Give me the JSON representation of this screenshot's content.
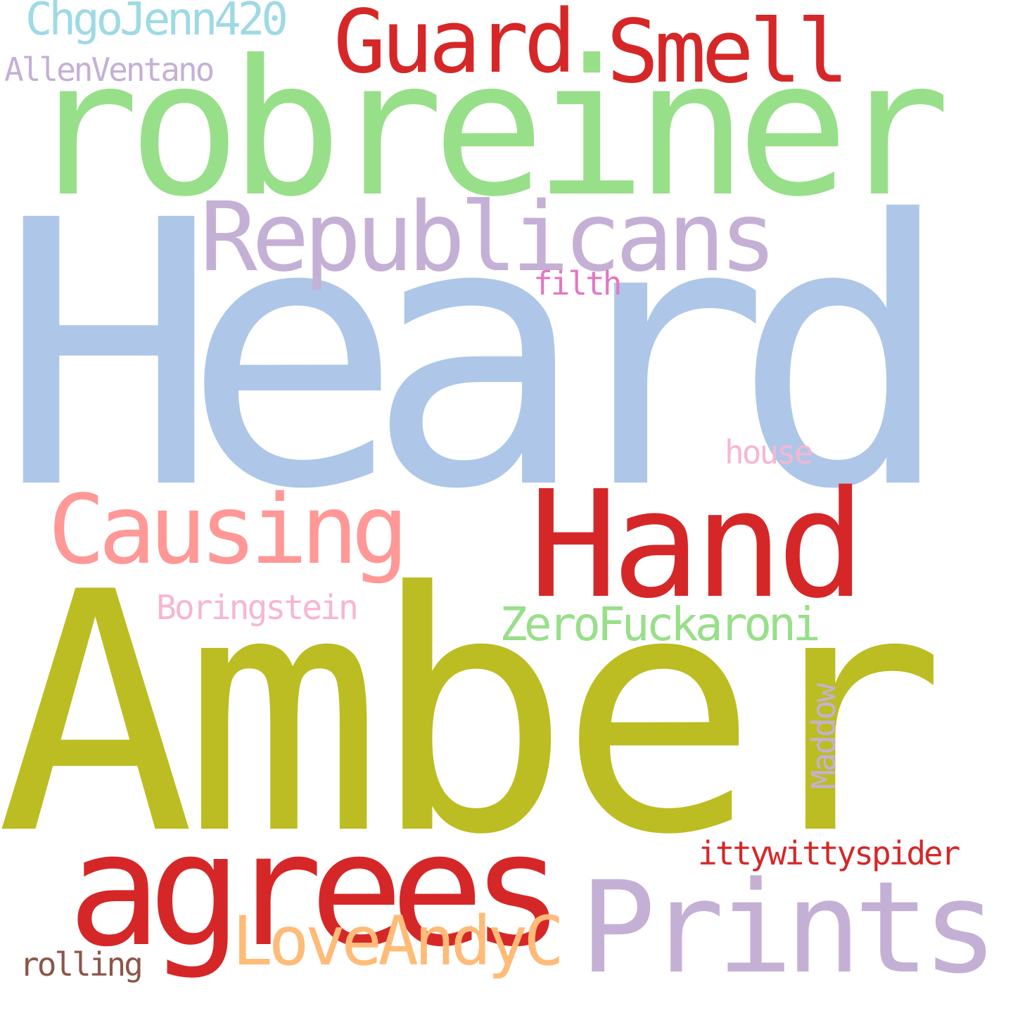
{
  "words": {
    "heard": {
      "text": "Heard",
      "color": "#aec7e8"
    },
    "amber": {
      "text": "Amber",
      "color": "#bcbd22"
    },
    "robreiner": {
      "text": "robreiner",
      "color": "#98df8a"
    },
    "agrees": {
      "text": "agrees",
      "color": "#d62728"
    },
    "prints": {
      "text": "Prints",
      "color": "#c5b0d5"
    },
    "hand": {
      "text": "Hand",
      "color": "#d62728"
    },
    "republicans": {
      "text": "Republicans",
      "color": "#c5b0d5"
    },
    "causing": {
      "text": "Causing",
      "color": "#ff9896"
    },
    "guard": {
      "text": "Guard",
      "color": "#d62728"
    },
    "smell": {
      "text": "Smell",
      "color": "#d62728"
    },
    "loveandyc": {
      "text": "LoveAndyC",
      "color": "#ffbb78"
    },
    "zerofuckaroni": {
      "text": "ZeroFuckaroni",
      "color": "#98df8a"
    },
    "chgojenn420": {
      "text": "ChgoJenn420",
      "color": "#9edae5"
    },
    "allenventano": {
      "text": "AllenVentano",
      "color": "#c5b0d5"
    },
    "ittywittyspider": {
      "text": "ittywittyspider",
      "color": "#d62728"
    },
    "boringstein": {
      "text": "Boringstein",
      "color": "#f7b6d2"
    },
    "house": {
      "text": "house",
      "color": "#f7b6d2"
    },
    "filth": {
      "text": "filth",
      "color": "#e377c2"
    },
    "rolling": {
      "text": "rolling",
      "color": "#8c564b"
    },
    "maddow": {
      "text": "Maddow",
      "color": "#c5b0d5"
    }
  }
}
